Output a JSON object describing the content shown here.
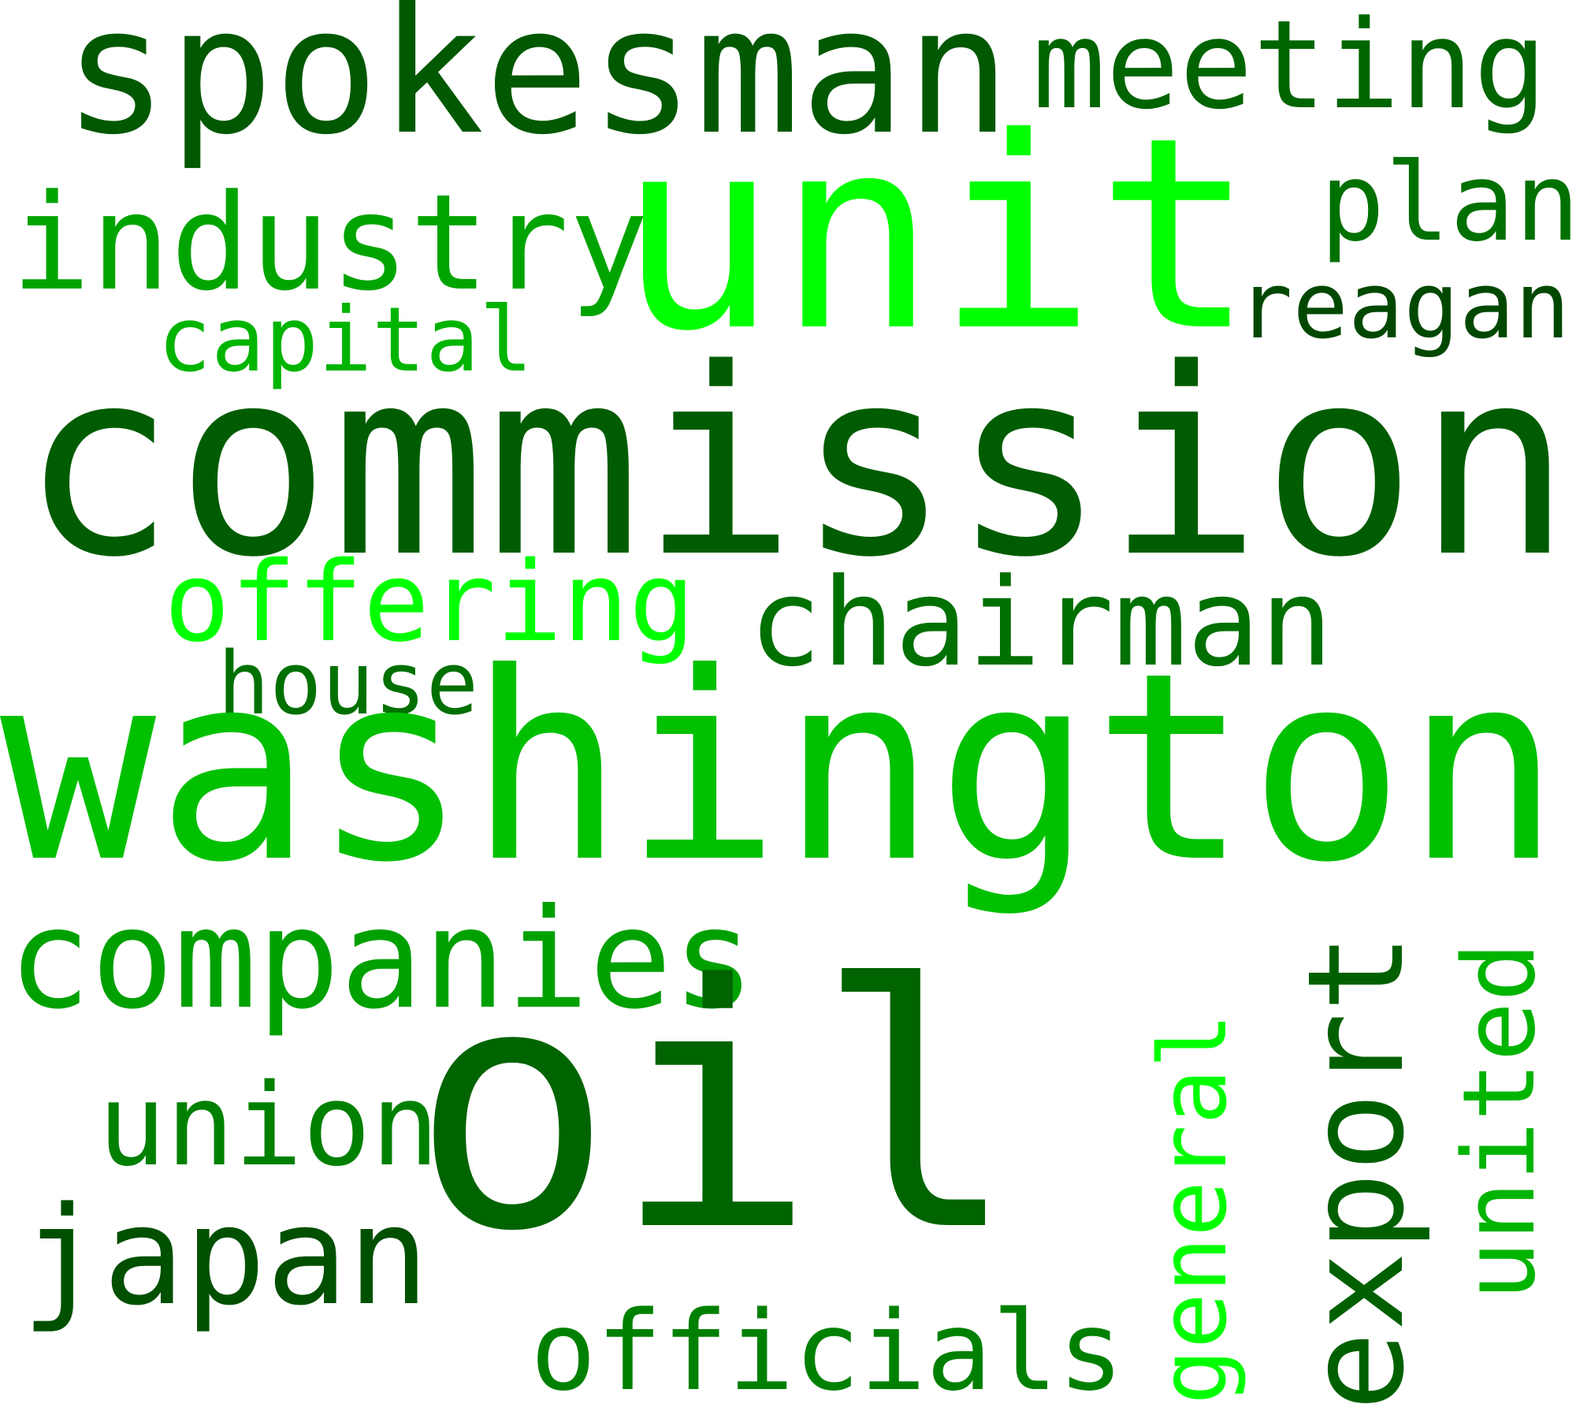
{
  "words": {
    "oil": {
      "text": "oil",
      "color": "#006400"
    },
    "washington": {
      "text": "washington",
      "color": "#00c000"
    },
    "commission": {
      "text": "commission",
      "color": "#005c00"
    },
    "unit": {
      "text": "unit",
      "color": "#00ff00"
    },
    "spokesman": {
      "text": "spokesman",
      "color": "#005800"
    },
    "meeting": {
      "text": "meeting",
      "color": "#006400"
    },
    "industry": {
      "text": "industry",
      "color": "#00a400"
    },
    "plan": {
      "text": "plan",
      "color": "#007000"
    },
    "reagan": {
      "text": "reagan",
      "color": "#004800"
    },
    "capital": {
      "text": "capital",
      "color": "#00b400"
    },
    "offering": {
      "text": "offering",
      "color": "#00ff00"
    },
    "chairman": {
      "text": "chairman",
      "color": "#007000"
    },
    "house": {
      "text": "house",
      "color": "#007000"
    },
    "companies": {
      "text": "companies",
      "color": "#00a000"
    },
    "union": {
      "text": "union",
      "color": "#008000"
    },
    "japan": {
      "text": "japan",
      "color": "#005000"
    },
    "officials": {
      "text": "officials",
      "color": "#008000"
    },
    "general": {
      "text": "general",
      "color": "#00ff00"
    },
    "export": {
      "text": "export",
      "color": "#006000"
    },
    "united": {
      "text": "united",
      "color": "#00b400"
    }
  }
}
